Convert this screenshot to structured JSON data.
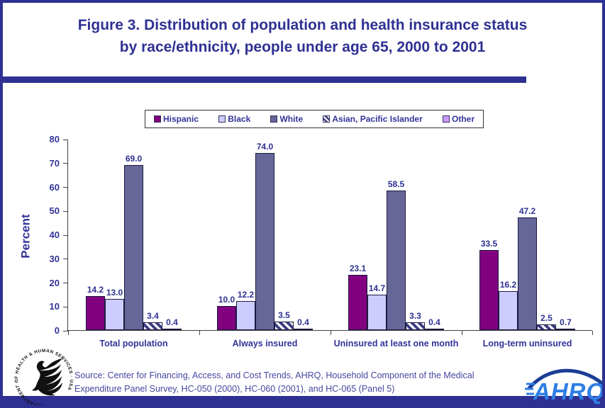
{
  "header": {
    "title_line1": "Figure 3. Distribution of population and health insurance status",
    "title_line2": "by race/ethnicity, people under age 65, 2000 to 2001"
  },
  "colors": {
    "accent_navy": "#2E3192",
    "text_navy": "#333399",
    "bar_outline": "#1a1a40",
    "hatch_stripe": "#3d3d85",
    "source_text": "#4646A0",
    "ahrq_blue": "#2F7FE6"
  },
  "chart_data": {
    "type": "bar",
    "title": "Figure 3. Distribution of population and health insurance status by race/ethnicity, people under age 65, 2000 to 2001",
    "ylabel": "Percent",
    "xlabel": "",
    "ylim": [
      0,
      80
    ],
    "ytick_step": 10,
    "grid": false,
    "legend_position": "top",
    "categories": [
      "Total population",
      "Always insured",
      "Uninsured at least one month",
      "Long-term uninsured"
    ],
    "series": [
      {
        "name": "Hispanic",
        "color": "#800080",
        "values": [
          14.2,
          10.0,
          23.1,
          33.5
        ]
      },
      {
        "name": "Black",
        "color": "#CCCCFF",
        "values": [
          13.0,
          12.2,
          14.7,
          16.2
        ]
      },
      {
        "name": "White",
        "color": "#666699",
        "values": [
          69.0,
          74.0,
          58.5,
          47.2
        ]
      },
      {
        "name": "Asian, Pacific Islander",
        "pattern": "diagonal-stripes",
        "values": [
          3.4,
          3.5,
          3.3,
          2.5
        ]
      },
      {
        "name": "Other",
        "color": "#CC99FF",
        "values": [
          0.4,
          0.4,
          0.4,
          0.7
        ]
      }
    ]
  },
  "footer": {
    "source_line1": "Source: Center for Financing, Access, and Cost Trends, AHRQ, Household Component of the Medical",
    "source_line2": "Expenditure Panel Survey, HC-050 (2000), HC-060 (2001), and HC-065 (Panel 5)",
    "hhs_seal_text": "DEPARTMENT OF HEALTH & HUMAN SERVICES · USA",
    "ahrq_logo_text": "AHRQ"
  }
}
